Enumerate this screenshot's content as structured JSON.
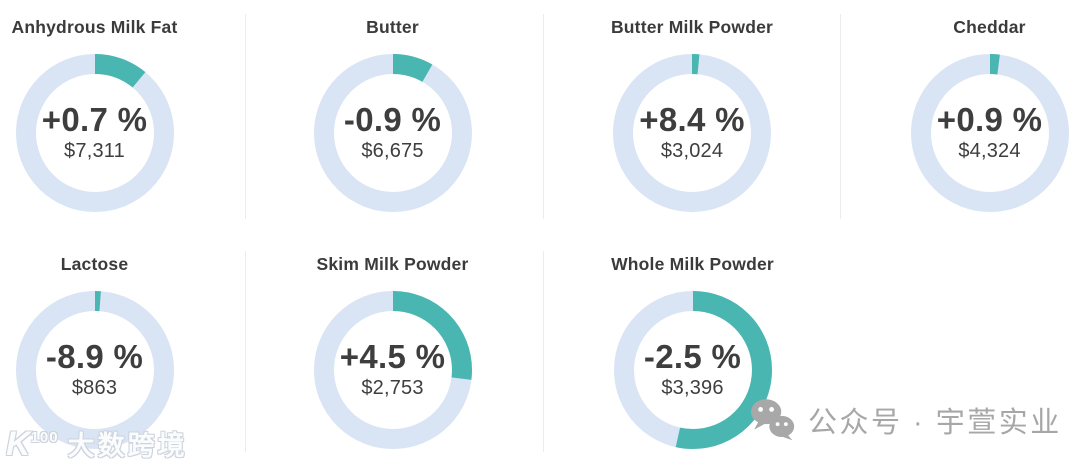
{
  "chart_data": [
    {
      "type": "donut",
      "title": "Anhydrous Milk Fat",
      "change_label": "+0.7 %",
      "change_pct": 0.7,
      "price_label": "$7,311",
      "price_usd": 7311,
      "ring_fraction": 0.11
    },
    {
      "type": "donut",
      "title": "Butter",
      "change_label": "-0.9 %",
      "change_pct": -0.9,
      "price_label": "$6,675",
      "price_usd": 6675,
      "ring_fraction": 0.083
    },
    {
      "type": "donut",
      "title": "Butter Milk Powder",
      "change_label": "+8.4 %",
      "change_pct": 8.4,
      "price_label": "$3,024",
      "price_usd": 3024,
      "ring_fraction": 0.015
    },
    {
      "type": "donut",
      "title": "Cheddar",
      "change_label": "+0.9 %",
      "change_pct": 0.9,
      "price_label": "$4,324",
      "price_usd": 4324,
      "ring_fraction": 0.02
    },
    {
      "type": "donut",
      "title": "Lactose",
      "change_label": "-8.9 %",
      "change_pct": -8.9,
      "price_label": "$863",
      "price_usd": 863,
      "ring_fraction": 0.012
    },
    {
      "type": "donut",
      "title": "Skim Milk Powder",
      "change_label": "+4.5 %",
      "change_pct": 4.5,
      "price_label": "$2,753",
      "price_usd": 2753,
      "ring_fraction": 0.27
    },
    {
      "type": "donut",
      "title": "Whole Milk Powder",
      "change_label": "-2.5 %",
      "change_pct": -2.5,
      "price_label": "$3,396",
      "price_usd": 3396,
      "ring_fraction": 0.535
    }
  ],
  "watermarks": {
    "left": {
      "logo_main": "K",
      "logo_sup": "100",
      "text": "大数跨境"
    },
    "right": {
      "icon": "wechat-icon",
      "text": "公众号 · 宇萱实业"
    }
  },
  "colors": {
    "accent_teal": "#4ab6b1",
    "ring_blue": "#d9e4f4",
    "divider": "#ececec",
    "title_text": "#3b3b3b",
    "value_text": "#3e3e3e",
    "watermark_gray": "#a7a7a7"
  }
}
